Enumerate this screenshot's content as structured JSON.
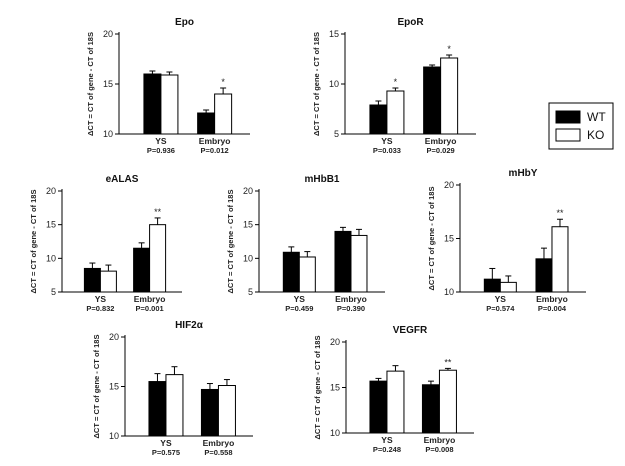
{
  "legend": {
    "items": [
      {
        "label": "WT",
        "color": "#000000"
      },
      {
        "label": "KO",
        "color": "#ffffff"
      }
    ]
  },
  "y_axis_label": "ΔCT = CT of gene - CT of 18S",
  "chart_data": [
    {
      "type": "bar",
      "title": "Epo",
      "ylim": [
        10,
        20
      ],
      "yticks": [
        "10",
        "15",
        "20"
      ],
      "categories": [
        "YS",
        "Embryo"
      ],
      "pvalues": [
        "P=0.936",
        "P=0.012"
      ],
      "series": [
        {
          "name": "WT",
          "values": [
            16.0,
            12.1
          ],
          "errors": [
            0.3,
            0.3
          ]
        },
        {
          "name": "KO",
          "values": [
            15.9,
            14.0
          ],
          "errors": [
            0.3,
            0.6
          ]
        }
      ],
      "significance": [
        "",
        "*"
      ]
    },
    {
      "type": "bar",
      "title": "EpoR",
      "ylim": [
        5,
        15
      ],
      "yticks": [
        "5",
        "10",
        "15"
      ],
      "categories": [
        "YS",
        "Embryo"
      ],
      "pvalues": [
        "P=0.033",
        "P=0.029"
      ],
      "series": [
        {
          "name": "WT",
          "values": [
            7.9,
            11.7
          ],
          "errors": [
            0.4,
            0.2
          ]
        },
        {
          "name": "KO",
          "values": [
            9.3,
            12.6
          ],
          "errors": [
            0.3,
            0.3
          ]
        }
      ],
      "significance": [
        "*",
        "*"
      ]
    },
    {
      "type": "bar",
      "title": "eALAS",
      "ylim": [
        5,
        20
      ],
      "yticks": [
        "5",
        "10",
        "15",
        "20"
      ],
      "categories": [
        "YS",
        "Embryo"
      ],
      "pvalues": [
        "P=0.832",
        "P=0.001"
      ],
      "series": [
        {
          "name": "WT",
          "values": [
            8.5,
            11.5
          ],
          "errors": [
            0.8,
            0.8
          ]
        },
        {
          "name": "KO",
          "values": [
            8.1,
            15.0
          ],
          "errors": [
            0.9,
            1.0
          ]
        }
      ],
      "significance": [
        "",
        "**"
      ]
    },
    {
      "type": "bar",
      "title": "mHbB1",
      "ylim": [
        5,
        20
      ],
      "yticks": [
        "5",
        "10",
        "15",
        "20"
      ],
      "categories": [
        "YS",
        "Embryo"
      ],
      "pvalues": [
        "P=0.459",
        "P=0.390"
      ],
      "series": [
        {
          "name": "WT",
          "values": [
            10.9,
            14.0
          ],
          "errors": [
            0.8,
            0.6
          ]
        },
        {
          "name": "KO",
          "values": [
            10.2,
            13.4
          ],
          "errors": [
            0.8,
            0.9
          ]
        }
      ],
      "significance": [
        "",
        ""
      ]
    },
    {
      "type": "bar",
      "title": "mHbY",
      "ylim": [
        10,
        20
      ],
      "yticks": [
        "10",
        "15",
        "20"
      ],
      "categories": [
        "YS",
        "Embryo"
      ],
      "pvalues": [
        "P=0.574",
        "P=0.004"
      ],
      "series": [
        {
          "name": "WT",
          "values": [
            11.2,
            13.1
          ],
          "errors": [
            1.0,
            1.0
          ]
        },
        {
          "name": "KO",
          "values": [
            10.9,
            16.1
          ],
          "errors": [
            0.6,
            0.7
          ]
        }
      ],
      "significance": [
        "",
        "**"
      ]
    },
    {
      "type": "bar",
      "title": "HIF2α",
      "ylim": [
        10,
        20
      ],
      "yticks": [
        "10",
        "15",
        "20"
      ],
      "categories": [
        "YS",
        "Embryo"
      ],
      "pvalues": [
        "P=0.575",
        "P=0.558"
      ],
      "series": [
        {
          "name": "WT",
          "values": [
            15.5,
            14.7
          ],
          "errors": [
            0.8,
            0.6
          ]
        },
        {
          "name": "KO",
          "values": [
            16.2,
            15.1
          ],
          "errors": [
            0.8,
            0.6
          ]
        }
      ],
      "significance": [
        "",
        ""
      ]
    },
    {
      "type": "bar",
      "title": "VEGFR",
      "ylim": [
        10,
        20
      ],
      "yticks": [
        "10",
        "15",
        "20"
      ],
      "categories": [
        "YS",
        "Embryo"
      ],
      "pvalues": [
        "P=0.248",
        "P=0.008"
      ],
      "series": [
        {
          "name": "WT",
          "values": [
            15.7,
            15.3
          ],
          "errors": [
            0.3,
            0.4
          ]
        },
        {
          "name": "KO",
          "values": [
            16.8,
            16.9
          ],
          "errors": [
            0.6,
            0.2
          ]
        }
      ],
      "significance": [
        "",
        "**"
      ]
    }
  ]
}
